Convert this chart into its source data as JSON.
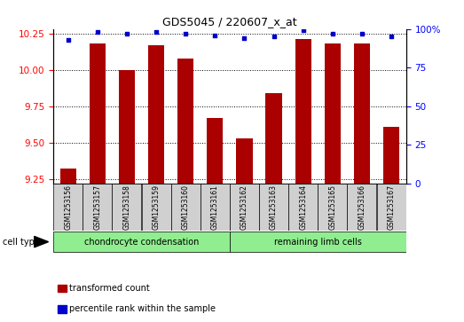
{
  "title": "GDS5045 / 220607_x_at",
  "samples": [
    "GSM1253156",
    "GSM1253157",
    "GSM1253158",
    "GSM1253159",
    "GSM1253160",
    "GSM1253161",
    "GSM1253162",
    "GSM1253163",
    "GSM1253164",
    "GSM1253165",
    "GSM1253166",
    "GSM1253167"
  ],
  "transformed_counts": [
    9.32,
    10.18,
    10.0,
    10.17,
    10.08,
    9.67,
    9.53,
    9.84,
    10.21,
    10.18,
    10.18,
    9.61
  ],
  "percentile_ranks": [
    93,
    98,
    97,
    98,
    97,
    96,
    94,
    95,
    99,
    97,
    97,
    95
  ],
  "ylim_left": [
    9.22,
    10.28
  ],
  "ylim_right": [
    0,
    100
  ],
  "yticks_left": [
    9.25,
    9.5,
    9.75,
    10.0,
    10.25
  ],
  "yticks_right": [
    0,
    25,
    50,
    75,
    100
  ],
  "bar_color": "#AA0000",
  "dot_color": "#0000CC",
  "bar_width": 0.55,
  "groups": [
    {
      "label": "chondrocyte condensation",
      "start": 0,
      "end": 5,
      "color": "#90EE90"
    },
    {
      "label": "remaining limb cells",
      "start": 6,
      "end": 11,
      "color": "#90EE90"
    }
  ],
  "cell_type_label": "cell type",
  "legend_items": [
    {
      "label": "transformed count",
      "color": "#AA0000"
    },
    {
      "label": "percentile rank within the sample",
      "color": "#0000CC"
    }
  ],
  "title_fontsize": 9,
  "tick_fontsize": 7.5,
  "sample_fontsize": 5.5,
  "legend_fontsize": 7,
  "group_fontsize": 7
}
